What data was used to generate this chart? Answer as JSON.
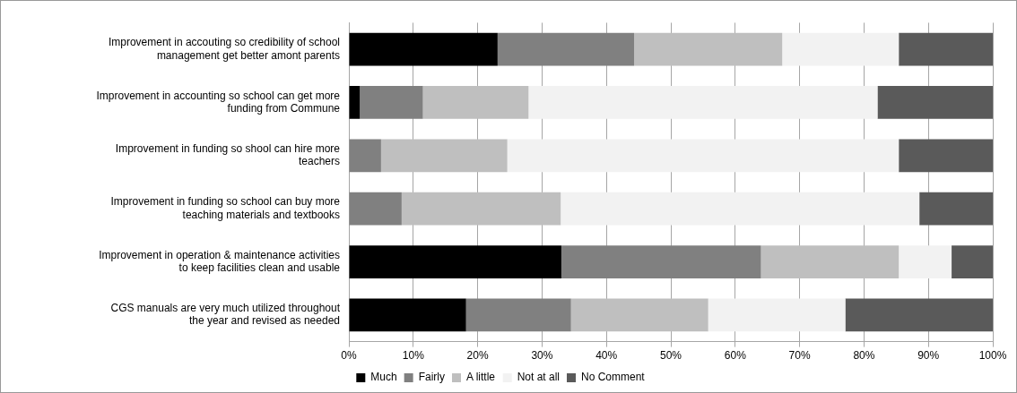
{
  "chart_data": {
    "type": "bar",
    "orientation": "horizontal",
    "stacked": true,
    "categories": [
      "Improvement in accouting so credibility of school management get better amont parents",
      "Improvement in accounting so school can get more funding from Commune",
      "Improvement in funding so shool can hire more teachers",
      "Improvement in funding so school can buy more teaching materials and textbooks",
      "Improvement in operation & maintenance activities to keep facilities clean and usable",
      "CGS manuals are very much utilized throughout the year and revised as needed"
    ],
    "series": [
      {
        "name": "Much",
        "color": "#000000",
        "values": [
          23.1,
          1.7,
          0,
          0,
          33.0,
          18.2
        ]
      },
      {
        "name": "Fairly",
        "color": "#808080",
        "values": [
          21.2,
          9.8,
          5.0,
          8.2,
          31.0,
          16.3
        ]
      },
      {
        "name": "A little",
        "color": "#bfbfbf",
        "values": [
          23.0,
          16.4,
          19.6,
          24.7,
          21.4,
          21.3
        ]
      },
      {
        "name": "Not at all",
        "color": "#f2f2f2",
        "values": [
          18.1,
          54.2,
          60.8,
          55.7,
          8.2,
          21.3
        ]
      },
      {
        "name": "No Comment",
        "color": "#5a5a5a",
        "values": [
          14.6,
          17.9,
          14.6,
          11.4,
          6.4,
          22.9
        ]
      }
    ],
    "xlim": [
      0,
      100
    ],
    "xticks": [
      {
        "value": 0,
        "label": "0%"
      },
      {
        "value": 10,
        "label": "10%"
      },
      {
        "value": 20,
        "label": "20%"
      },
      {
        "value": 30,
        "label": "30%"
      },
      {
        "value": 40,
        "label": "40%"
      },
      {
        "value": 50,
        "label": "50%"
      },
      {
        "value": 60,
        "label": "60%"
      },
      {
        "value": 70,
        "label": "70%"
      },
      {
        "value": 80,
        "label": "80%"
      },
      {
        "value": 90,
        "label": "90%"
      },
      {
        "value": 100,
        "label": "100%"
      }
    ],
    "grid": "x",
    "legend": "bottom"
  }
}
